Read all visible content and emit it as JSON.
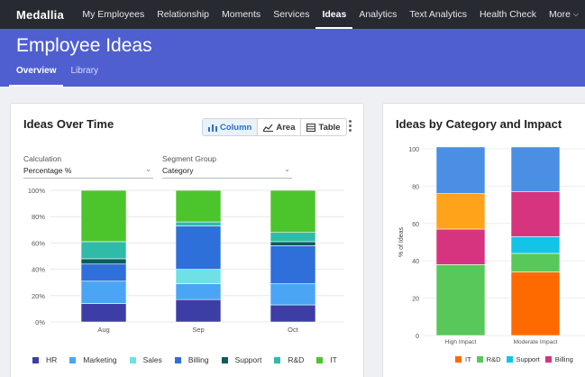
{
  "nav": {
    "logo": "Medallia",
    "items": [
      "My Employees",
      "Relationship",
      "Moments",
      "Services",
      "Ideas",
      "Analytics",
      "Text Analytics",
      "Health Check"
    ],
    "active": "Ideas",
    "more": "More"
  },
  "hero": {
    "title": "Employee Ideas",
    "tabs": [
      "Overview",
      "Library"
    ],
    "active_tab": "Overview"
  },
  "left_card": {
    "title": "Ideas Over Time",
    "view_options": [
      "Column",
      "Area",
      "Table"
    ],
    "active_view": "Column",
    "calculation": {
      "label": "Calculation",
      "value": "Percentage %"
    },
    "segment_group": {
      "label": "Segment Group",
      "value": "Category"
    }
  },
  "right_card": {
    "title": "Ideas by Category and Impact"
  },
  "colors": {
    "HR": "#3c3ea6",
    "Marketing": "#4aa6f5",
    "Sales": "#6fe0e6",
    "Billing": "#2f6fd9",
    "Support": "#0e5a5e",
    "R&D": "#2fbba8",
    "IT": "#4cc52c",
    "IT2": "#ff6a00",
    "R&D2": "#58c85a",
    "Support2": "#11c4e8",
    "Billing2": "#d6347f",
    "Y1": "#ffa31a",
    "B2": "#4a8fe3"
  },
  "chart_data": [
    {
      "type": "bar",
      "stacked": true,
      "categories": [
        "Aug",
        "Sep",
        "Oct"
      ],
      "yticks": [
        "0%",
        "20%",
        "40%",
        "60%",
        "80%",
        "100%"
      ],
      "ylim": [
        0,
        100
      ],
      "series": [
        {
          "name": "HR",
          "values": [
            14,
            17,
            13
          ]
        },
        {
          "name": "Marketing",
          "values": [
            17,
            12,
            16
          ]
        },
        {
          "name": "Sales",
          "values": [
            0,
            11,
            0
          ]
        },
        {
          "name": "Billing",
          "values": [
            13,
            33,
            29
          ]
        },
        {
          "name": "Support",
          "values": [
            4,
            0,
            3
          ]
        },
        {
          "name": "R&D",
          "values": [
            13,
            3,
            7
          ]
        },
        {
          "name": "IT",
          "values": [
            39,
            24,
            32
          ]
        }
      ]
    },
    {
      "type": "bar",
      "stacked": true,
      "categories": [
        "High Impact",
        "Moderate Impact"
      ],
      "ylabel": "% of Ideas",
      "yticks": [
        "0",
        "20",
        "40",
        "60",
        "80",
        "100"
      ],
      "ylim": [
        0,
        100
      ],
      "series": [
        {
          "name": "IT",
          "values": [
            0,
            34
          ]
        },
        {
          "name": "R&D",
          "values": [
            38,
            10
          ]
        },
        {
          "name": "Support",
          "values": [
            0,
            9
          ]
        },
        {
          "name": "Billing",
          "values": [
            19,
            24
          ]
        },
        {
          "name": "",
          "values": [
            19,
            0
          ]
        },
        {
          "name": "",
          "values": [
            25,
            24
          ]
        }
      ],
      "legend": [
        "IT",
        "R&D",
        "Support",
        "Billing"
      ]
    }
  ]
}
